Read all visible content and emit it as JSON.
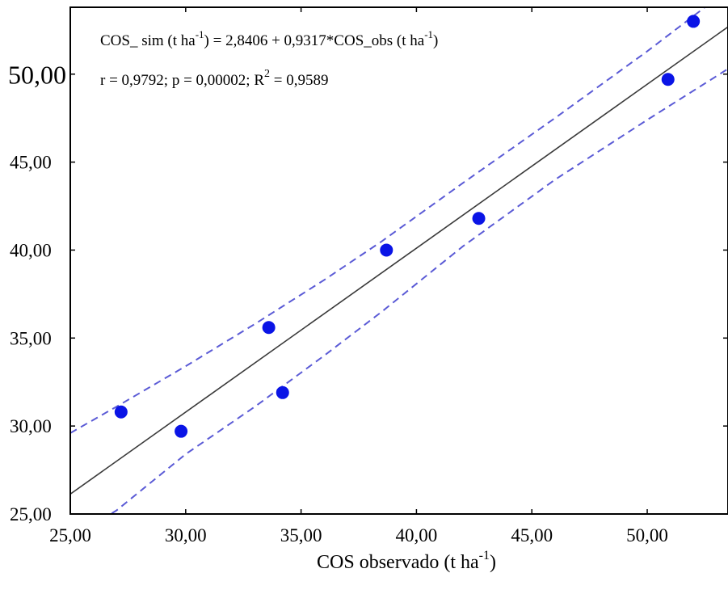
{
  "chart_data": {
    "type": "scatter",
    "xlabel": "COS observado (t ha",
    "xlabel_sup": "-1",
    "xlabel_end": ")",
    "ylabel": "",
    "xlim": [
      25,
      53.5
    ],
    "ylim": [
      25,
      53.8
    ],
    "x_ticks": [
      25,
      30,
      35,
      40,
      45,
      50
    ],
    "x_tick_labels": [
      "25,00",
      "30,00",
      "35,00",
      "40,00",
      "45,00",
      "50,00"
    ],
    "y_ticks": [
      25,
      30,
      35,
      40,
      45,
      50
    ],
    "y_tick_labels": [
      "25,00",
      "30,00",
      "35,00",
      "40,00",
      "45,00",
      "50,00"
    ],
    "grid": false,
    "points": [
      {
        "x": 27.2,
        "y": 30.8
      },
      {
        "x": 29.8,
        "y": 29.7
      },
      {
        "x": 33.6,
        "y": 35.6
      },
      {
        "x": 34.2,
        "y": 31.9
      },
      {
        "x": 38.7,
        "y": 40.0
      },
      {
        "x": 42.7,
        "y": 41.8
      },
      {
        "x": 50.9,
        "y": 49.7
      },
      {
        "x": 52.0,
        "y": 53.0
      }
    ],
    "regression": {
      "intercept": 2.8406,
      "slope": 0.9317
    },
    "confidence_band": {
      "x": [
        25,
        27,
        30,
        33,
        36,
        38.5,
        42,
        46,
        50,
        53.5
      ],
      "upper": [
        29.6,
        31.1,
        33.4,
        35.8,
        38.3,
        40.5,
        43.8,
        47.5,
        51.3,
        54.8
      ],
      "lower": [
        23.6,
        25.2,
        28.4,
        31.1,
        34.0,
        36.5,
        40.2,
        44.0,
        47.4,
        50.3
      ]
    },
    "annotations": {
      "line1_a": "COS_ sim (t ha",
      "line1_sup1": "-1",
      "line1_b": ") = 2,8406 + 0,9317*COS_obs (t ha",
      "line1_sup2": "-1",
      "line1_c": ")",
      "line2_a": "r = 0,9792; p = 0,00002; R",
      "line2_sup": "2",
      "line2_b": " = 0,9589"
    },
    "colors": {
      "points": "#0a14e6",
      "fit_line": "#3a3a3a",
      "band": "#5b5bd6",
      "axis": "#000000"
    }
  }
}
